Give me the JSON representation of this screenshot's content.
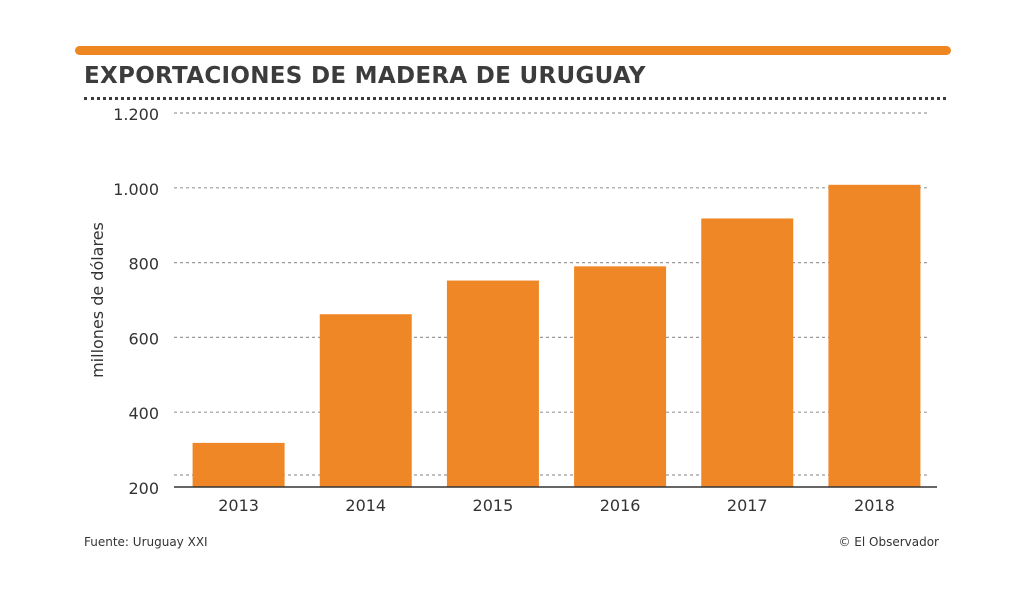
{
  "colors": {
    "accent": "#ee8722",
    "bar": "#f08726",
    "text": "#3c3c3c",
    "grid": "#9a9a9a",
    "axis": "#333333"
  },
  "chart_data": {
    "type": "bar",
    "title": "EXPORTACIONES DE MADERA DE URUGUAY",
    "xlabel": "",
    "ylabel": "millones de dólares",
    "categories": [
      "2013",
      "2014",
      "2015",
      "2016",
      "2017",
      "2018"
    ],
    "values": [
      318,
      662,
      752,
      790,
      918,
      1008
    ],
    "ylim": [
      200,
      1200
    ],
    "yticks": [
      200,
      400,
      600,
      800,
      1000,
      1200
    ],
    "ytick_labels": [
      "200",
      "400",
      "600",
      "800",
      "1.000",
      "1.200"
    ],
    "grid": true,
    "grid_style": "dotted"
  },
  "footer": {
    "source": "Fuente: Uruguay XXI",
    "credit": "© El Observador"
  }
}
